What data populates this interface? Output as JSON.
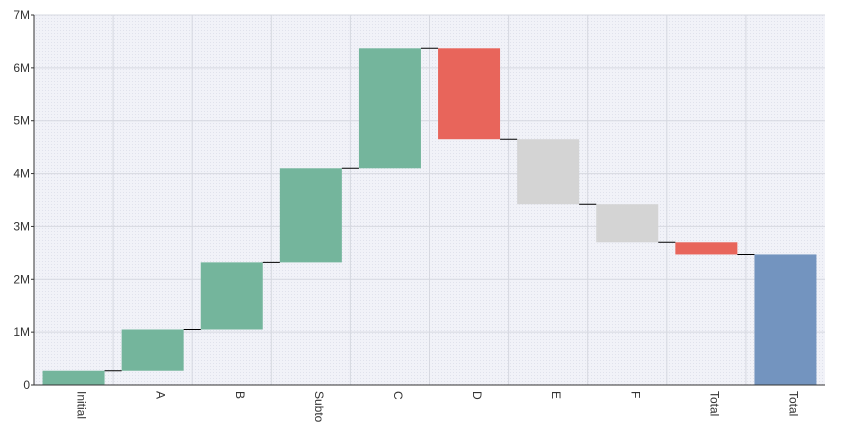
{
  "chart_data": {
    "type": "bar",
    "subtype": "waterfall",
    "categories": [
      "Initial",
      "A",
      "B",
      "Subto",
      "C",
      "D",
      "E",
      "F",
      "Total",
      "Total"
    ],
    "bars": [
      {
        "category": "Initial",
        "start": 0,
        "end": 270000,
        "kind": "positive"
      },
      {
        "category": "A",
        "start": 270000,
        "end": 1050000,
        "kind": "positive"
      },
      {
        "category": "B",
        "start": 1050000,
        "end": 2320000,
        "kind": "positive"
      },
      {
        "category": "Subto",
        "start": 2320000,
        "end": 4100000,
        "kind": "positive"
      },
      {
        "category": "C",
        "start": 4100000,
        "end": 6370000,
        "kind": "positive"
      },
      {
        "category": "D",
        "start": 6370000,
        "end": 4650000,
        "kind": "negative"
      },
      {
        "category": "E",
        "start": 4650000,
        "end": 3420000,
        "kind": "neutral"
      },
      {
        "category": "F",
        "start": 3420000,
        "end": 2700000,
        "kind": "neutral"
      },
      {
        "category": "Total",
        "start": 2700000,
        "end": 2470000,
        "kind": "negative"
      },
      {
        "category": "Total",
        "start": 0,
        "end": 2470000,
        "kind": "total"
      }
    ],
    "y_ticks": [
      "0",
      "1M",
      "2M",
      "3M",
      "4M",
      "5M",
      "6M",
      "7M"
    ],
    "ylim": [
      0,
      7000000
    ],
    "xlabel": "",
    "ylabel": "",
    "title": "",
    "grid": true,
    "colors": {
      "positive": "#74b59c",
      "negative": "#e8655b",
      "neutral": "#d4d4d4",
      "total": "#7394bf",
      "plot_background": "#eeeff5",
      "grid": "#d6d8e0",
      "connector": "#000000",
      "axis": "#333333"
    }
  }
}
